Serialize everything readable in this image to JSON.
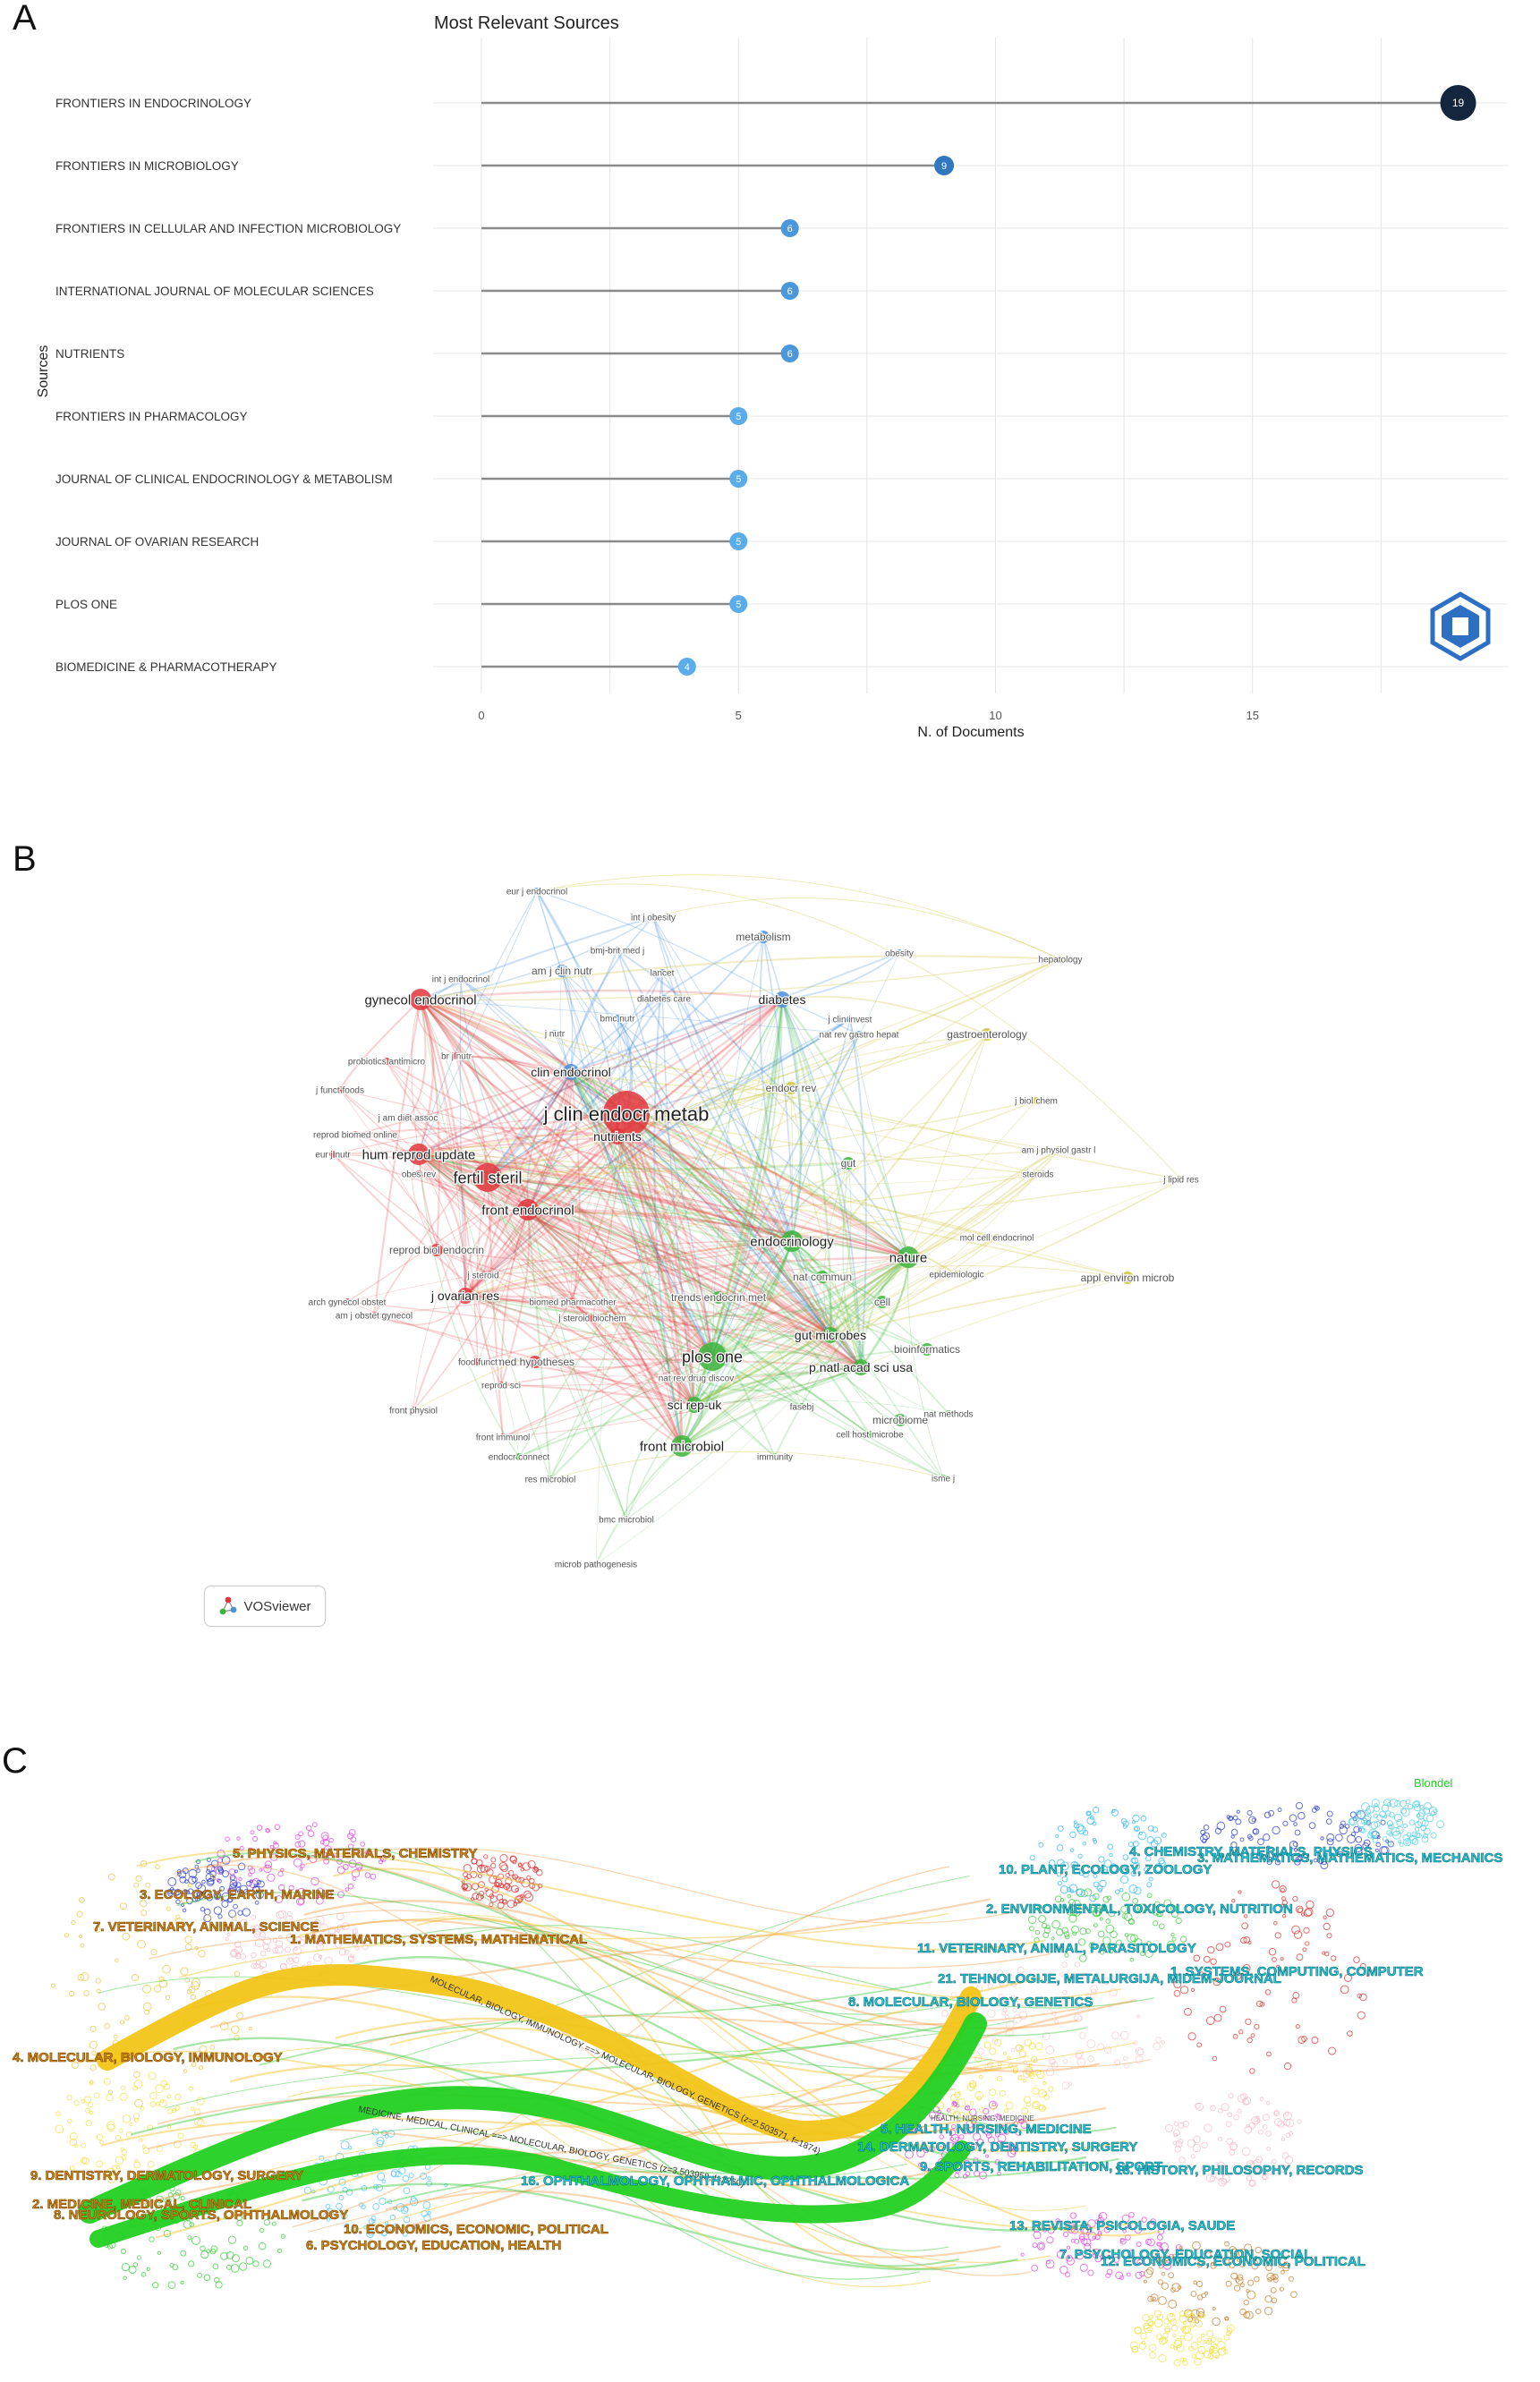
{
  "panels": {
    "a": "A",
    "b": "B",
    "c": "C"
  },
  "chart_data": [
    {
      "type": "lollipop",
      "title": "Most Relevant Sources",
      "xlabel": "N. of Documents",
      "ylabel": "Sources",
      "xlim": [
        0,
        19.5
      ],
      "xticks": [
        0,
        5,
        10,
        15
      ],
      "categories": [
        "FRONTIERS IN ENDOCRINOLOGY",
        "FRONTIERS IN MICROBIOLOGY",
        "FRONTIERS IN CELLULAR AND INFECTION MICROBIOLOGY",
        "INTERNATIONAL JOURNAL OF MOLECULAR SCIENCES",
        "NUTRIENTS",
        "FRONTIERS IN PHARMACOLOGY",
        "JOURNAL OF CLINICAL ENDOCRINOLOGY & METABOLISM",
        "JOURNAL OF OVARIAN RESEARCH",
        "PLOS ONE",
        "BIOMEDICINE & PHARMACOTHERAPY"
      ],
      "values": [
        19,
        9,
        6,
        6,
        6,
        5,
        5,
        5,
        5,
        4
      ],
      "grid": true,
      "colors": {
        "low": "#5aa8e8",
        "mid": "#2e7bc2",
        "high": "#13263d"
      }
    },
    {
      "type": "network",
      "badge": "VOSviewer",
      "clusters": {
        "red": "#e2353b",
        "green": "#3cb43c",
        "blue": "#4a90d9",
        "yellow": "#cdc43a"
      },
      "nodes": [
        {
          "label": "j clin endocr metab",
          "cluster": "red",
          "weight": 10
        },
        {
          "label": "fertil steril",
          "cluster": "red",
          "weight": 7
        },
        {
          "label": "hum reprod update",
          "cluster": "red",
          "weight": 5
        },
        {
          "label": "gynecol endocrinol",
          "cluster": "red",
          "weight": 5
        },
        {
          "label": "front endocrinol",
          "cluster": "red",
          "weight": 5
        },
        {
          "label": "nutrients",
          "cluster": "red",
          "weight": 4
        },
        {
          "label": "j ovarian res",
          "cluster": "red",
          "weight": 4
        },
        {
          "label": "med hypotheses",
          "cluster": "red",
          "weight": 3
        },
        {
          "label": "reprod biol endocrin",
          "cluster": "red",
          "weight": 3
        },
        {
          "label": "reprod biomed online",
          "cluster": "red",
          "weight": 2
        },
        {
          "label": "eur j nutr",
          "cluster": "red",
          "weight": 2
        },
        {
          "label": "j am diet assoc",
          "cluster": "red",
          "weight": 2
        },
        {
          "label": "j funct foods",
          "cluster": "red",
          "weight": 2
        },
        {
          "label": "probiotics antimicro",
          "cluster": "red",
          "weight": 2
        },
        {
          "label": "br j nutr",
          "cluster": "red",
          "weight": 2
        },
        {
          "label": "obes rev",
          "cluster": "red",
          "weight": 2
        },
        {
          "label": "arch gynecol obstet",
          "cluster": "red",
          "weight": 2
        },
        {
          "label": "am j obstet gynecol",
          "cluster": "red",
          "weight": 2
        },
        {
          "label": "food funct",
          "cluster": "red",
          "weight": 2
        },
        {
          "label": "reprod sci",
          "cluster": "red",
          "weight": 2
        },
        {
          "label": "front physiol",
          "cluster": "red",
          "weight": 2
        },
        {
          "label": "biomed pharmacother",
          "cluster": "red",
          "weight": 2
        },
        {
          "label": "front immunol",
          "cluster": "red",
          "weight": 2
        },
        {
          "label": "j steroid",
          "cluster": "red",
          "weight": 2
        },
        {
          "label": "j steroid biochem",
          "cluster": "red",
          "weight": 2
        },
        {
          "label": "plos one",
          "cluster": "green",
          "weight": 8
        },
        {
          "label": "endocrinology",
          "cluster": "green",
          "weight": 5
        },
        {
          "label": "nature",
          "cluster": "green",
          "weight": 5
        },
        {
          "label": "front microbiol",
          "cluster": "green",
          "weight": 5
        },
        {
          "label": "gut microbes",
          "cluster": "green",
          "weight": 4
        },
        {
          "label": "p natl acad sci usa",
          "cluster": "green",
          "weight": 4
        },
        {
          "label": "sci rep-uk",
          "cluster": "green",
          "weight": 4
        },
        {
          "label": "trends endocrin met",
          "cluster": "green",
          "weight": 3
        },
        {
          "label": "nat commun",
          "cluster": "green",
          "weight": 3
        },
        {
          "label": "gut",
          "cluster": "green",
          "weight": 3
        },
        {
          "label": "cell",
          "cluster": "green",
          "weight": 3
        },
        {
          "label": "bioinformatics",
          "cluster": "green",
          "weight": 3
        },
        {
          "label": "microbiome",
          "cluster": "green",
          "weight": 3
        },
        {
          "label": "cell host microbe",
          "cluster": "green",
          "weight": 2
        },
        {
          "label": "nat methods",
          "cluster": "green",
          "weight": 2
        },
        {
          "label": "immunity",
          "cluster": "green",
          "weight": 2
        },
        {
          "label": "isme j",
          "cluster": "green",
          "weight": 2
        },
        {
          "label": "res microbiol",
          "cluster": "green",
          "weight": 2
        },
        {
          "label": "endocr connect",
          "cluster": "green",
          "weight": 2
        },
        {
          "label": "bmc microbiol",
          "cluster": "green",
          "weight": 2
        },
        {
          "label": "microb pathogenesis",
          "cluster": "green",
          "weight": 2
        },
        {
          "label": "fasebj",
          "cluster": "green",
          "weight": 2
        },
        {
          "label": "nat rev drug discov",
          "cluster": "green",
          "weight": 2
        },
        {
          "label": "diabetes",
          "cluster": "blue",
          "weight": 4
        },
        {
          "label": "clin endocrinol",
          "cluster": "blue",
          "weight": 4
        },
        {
          "label": "metabolism",
          "cluster": "blue",
          "weight": 3
        },
        {
          "label": "am j clin nutr",
          "cluster": "blue",
          "weight": 3
        },
        {
          "label": "int j endocrinol",
          "cluster": "blue",
          "weight": 2
        },
        {
          "label": "bmj-brit med j",
          "cluster": "blue",
          "weight": 2
        },
        {
          "label": "lancet",
          "cluster": "blue",
          "weight": 2
        },
        {
          "label": "diabetes care",
          "cluster": "blue",
          "weight": 2
        },
        {
          "label": "bmc nutr",
          "cluster": "blue",
          "weight": 2
        },
        {
          "label": "j nutr",
          "cluster": "blue",
          "weight": 2
        },
        {
          "label": "int j obesity",
          "cluster": "blue",
          "weight": 2
        },
        {
          "label": "eur j endocrinol",
          "cluster": "blue",
          "weight": 2
        },
        {
          "label": "obesity",
          "cluster": "blue",
          "weight": 2
        },
        {
          "label": "j clin invest",
          "cluster": "blue",
          "weight": 2
        },
        {
          "label": "nat rev gastro hepat",
          "cluster": "blue",
          "weight": 2
        },
        {
          "label": "endocr rev",
          "cluster": "yellow",
          "weight": 3
        },
        {
          "label": "gastroenterology",
          "cluster": "yellow",
          "weight": 3
        },
        {
          "label": "hepatology",
          "cluster": "yellow",
          "weight": 2
        },
        {
          "label": "j biol chem",
          "cluster": "yellow",
          "weight": 2
        },
        {
          "label": "am j physiol gastr l",
          "cluster": "yellow",
          "weight": 2
        },
        {
          "label": "steroids",
          "cluster": "yellow",
          "weight": 2
        },
        {
          "label": "j lipid res",
          "cluster": "yellow",
          "weight": 2
        },
        {
          "label": "mol cell endocrinol",
          "cluster": "yellow",
          "weight": 2
        },
        {
          "label": "appl environ microb",
          "cluster": "yellow",
          "weight": 3
        },
        {
          "label": "epidemiologic",
          "cluster": "yellow",
          "weight": 2
        }
      ]
    },
    {
      "type": "dual-map",
      "legend": "Blondel",
      "citing": [
        {
          "label": "5. PHYSICS, MATERIALS, CHEMISTRY",
          "color": "#e040e0"
        },
        {
          "label": "3. ECOLOGY, EARTH, MARINE",
          "color": "#2233cc"
        },
        {
          "label": "7. VETERINARY, ANIMAL, SCIENCE",
          "color": "#e8d83a"
        },
        {
          "label": "1. MATHEMATICS, SYSTEMS, MATHEMATICAL",
          "color": "#e02a2a"
        },
        {
          "label": "4. MOLECULAR, BIOLOGY, IMMUNOLOGY",
          "color": "#e8c43a"
        },
        {
          "label": "9. DENTISTRY, DERMATOLOGY, SURGERY",
          "color": "#f0e040"
        },
        {
          "label": "2. MEDICINE, MEDICAL, CLINICAL",
          "color": "#33cc33"
        },
        {
          "label": "8. NEUROLOGY, SPORTS, OPHTHALMOLOGY",
          "color": "#7fd36a"
        },
        {
          "label": "10. ECONOMICS, ECONOMIC, POLITICAL",
          "color": "#29b6f6"
        },
        {
          "label": "6. PSYCHOLOGY, EDUCATION, HEALTH",
          "color": "#4fc3f7"
        }
      ],
      "cited": [
        {
          "label": "4. CHEMISTRY, MATERIALS, PHYSICS",
          "color": "#2233cc"
        },
        {
          "label": "10. PLANT, ECOLOGY, ZOOLOGY",
          "color": "#29b6f6"
        },
        {
          "label": "3. MATHEMATICS, MATHEMATICS, MECHANICS",
          "color": "#4dd0e1"
        },
        {
          "label": "2. ENVIRONMENTAL, TOXICOLOGY, NUTRITION",
          "color": "#33cc33"
        },
        {
          "label": "11. VETERINARY, ANIMAL, PARASITOLOGY",
          "color": "#e8d83a"
        },
        {
          "label": "1. SYSTEMS, COMPUTING, COMPUTER",
          "color": "#e02a2a"
        },
        {
          "label": "21. TEHNOLOGIJE, METALURGIJA, MIDEM-JOURNAL",
          "color": "#e02a2a"
        },
        {
          "label": "8. MOLECULAR, BIOLOGY, GENETICS",
          "color": "#f0c040"
        },
        {
          "label": "5. HEALTH, NURSING, MEDICINE",
          "color": "#e040e0"
        },
        {
          "label": "14. DERMATOLOGY, DENTISTRY, SURGERY",
          "color": "#e040e0"
        },
        {
          "label": "9. SPORTS, REHABILITATION, SPORT",
          "color": "#f0e040"
        },
        {
          "label": "18. HISTORY, PHILOSOPHY, RECORDS",
          "color": "#c47b2a"
        },
        {
          "label": "16. OPHTHALMOLOGY, OPHTHALMIC, OPHTHALMOLOGICA",
          "color": "#33cc33"
        },
        {
          "label": "13. REVISTA, PSICOLOGIA, SAUDE",
          "color": "#e040e0"
        },
        {
          "label": "7. PSYCHOLOGY, EDUCATION, SOCIAL",
          "color": "#f0e040"
        },
        {
          "label": "12. ECONOMICS, ECONOMIC, POLITICAL",
          "color": "#c47b2a"
        }
      ],
      "links": [
        {
          "from": "4. MOLECULAR, BIOLOGY, IMMUNOLOGY",
          "to": "8. MOLECULAR, BIOLOGY, GENETICS",
          "label": "MOLECULAR, BIOLOGY, IMMUNOLOGY ==> MOLECULAR, BIOLOGY, GENETICS (z=2.503571, f=1874)",
          "color": "#f2c418",
          "width": 24
        },
        {
          "from": "2. MEDICINE, MEDICAL, CLINICAL",
          "to": "8. MOLECULAR, BIOLOGY, GENETICS",
          "label": "MEDICINE, MEDICAL, CLINICAL ==> MOLECULAR, BIOLOGY, GENETICS (z=3.503958, f=2260)",
          "color": "#22d022",
          "width": 26
        },
        {
          "from": "2. MEDICINE, MEDICAL, CLINICAL",
          "to": "5. HEALTH, NURSING, MEDICINE",
          "label": "",
          "color": "#22d022",
          "width": 20
        }
      ],
      "center_label": "",
      "small_labels": [
        "HEALTH, NURSING, MEDICINE"
      ]
    }
  ]
}
